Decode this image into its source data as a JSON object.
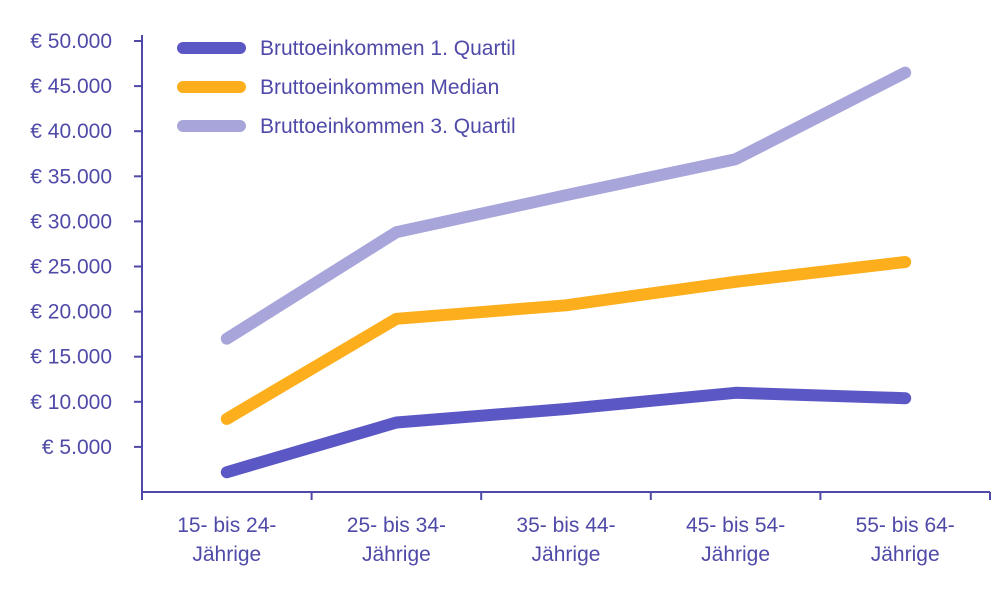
{
  "chart_data": {
    "type": "line",
    "categories": [
      [
        "15- bis 24-",
        "Jährige"
      ],
      [
        "25- bis 34-",
        "Jährige"
      ],
      [
        "35- bis 44-",
        "Jährige"
      ],
      [
        "45- bis 54-",
        "Jährige"
      ],
      [
        "55- bis 64-",
        "Jährige"
      ]
    ],
    "y_ticks": [
      5000,
      10000,
      15000,
      20000,
      25000,
      30000,
      35000,
      40000,
      45000,
      50000
    ],
    "y_tick_labels": [
      "€ 5.000",
      "€ 10.000",
      "€ 15.000",
      "€ 20.000",
      "€ 25.000",
      "€ 30.000",
      "€ 35.000",
      "€ 40.000",
      "€ 45.000",
      "€ 50.000"
    ],
    "ylim": [
      0,
      50000
    ],
    "grid": false,
    "legend_position": "top-left",
    "series": [
      {
        "name": "Bruttoeinkommen 1. Quartil",
        "color": "#5b57c4",
        "values": [
          2200,
          7700,
          9200,
          11000,
          10400
        ]
      },
      {
        "name": "Bruttoeinkommen Median",
        "color": "#fdae1c",
        "values": [
          8100,
          19200,
          20700,
          23300,
          25500
        ]
      },
      {
        "name": "Bruttoeinkommen 3. Quartil",
        "color": "#a7a5da",
        "values": [
          17000,
          28800,
          32900,
          36900,
          46500
        ]
      }
    ],
    "axis_color": "#4f4aa8"
  }
}
